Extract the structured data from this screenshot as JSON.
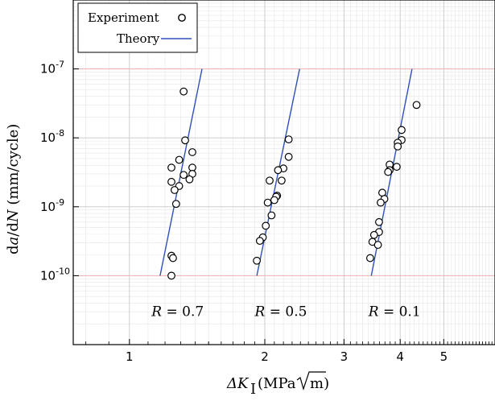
{
  "chart_data": {
    "type": "scatter",
    "x_scale": "log",
    "y_scale": "log",
    "xlim": [
      0.75,
      6.5
    ],
    "ylim": [
      1e-11,
      1e-06
    ],
    "xticks": [
      1,
      2,
      3,
      4,
      5
    ],
    "xtick_labels": [
      "1",
      "2",
      "3",
      "4",
      "5"
    ],
    "yticks": [
      1e-10,
      1e-09,
      1e-08,
      1e-07
    ],
    "ytick_labels": [
      "10^-10",
      "10^-9",
      "10^-8",
      "10^-7"
    ],
    "xlabel": "ΔK_I (MPa√m)",
    "ylabel": "da/dN (mm/cycle)",
    "grid": true,
    "legend": {
      "position": "top-left",
      "entries": [
        {
          "name": "Experiment",
          "marker": "open-circle"
        },
        {
          "name": "Theory",
          "line_color": "#3050b8"
        }
      ]
    },
    "annotations": [
      {
        "text": "R = 0.7",
        "x": 1.12,
        "y": 2.6e-11
      },
      {
        "text": "R = 0.5",
        "x": 1.9,
        "y": 2.6e-11
      },
      {
        "text": "R = 0.1",
        "x": 3.4,
        "y": 2.6e-11
      }
    ],
    "theory_lines": [
      {
        "R": "0.7",
        "x": [
          1.17,
          1.45
        ],
        "y": [
          1e-10,
          1e-07
        ]
      },
      {
        "R": "0.5",
        "x": [
          1.92,
          2.39
        ],
        "y": [
          1e-10,
          1e-07
        ]
      },
      {
        "R": "0.1",
        "x": [
          3.45,
          4.25
        ],
        "y": [
          1e-10,
          1e-07
        ]
      }
    ],
    "series": [
      {
        "R": "0.7",
        "points": [
          {
            "x": 1.32,
            "y": 4.7e-08
          },
          {
            "x": 1.33,
            "y": 9.2e-09
          },
          {
            "x": 1.38,
            "y": 6.2e-09
          },
          {
            "x": 1.29,
            "y": 4.8e-09
          },
          {
            "x": 1.24,
            "y": 3.7e-09
          },
          {
            "x": 1.38,
            "y": 3.7e-09
          },
          {
            "x": 1.38,
            "y": 3e-09
          },
          {
            "x": 1.32,
            "y": 2.9e-09
          },
          {
            "x": 1.36,
            "y": 2.5e-09
          },
          {
            "x": 1.24,
            "y": 2.3e-09
          },
          {
            "x": 1.29,
            "y": 2e-09
          },
          {
            "x": 1.26,
            "y": 1.75e-09
          },
          {
            "x": 1.27,
            "y": 1.1e-09
          },
          {
            "x": 1.24,
            "y": 1.95e-10
          },
          {
            "x": 1.25,
            "y": 1.8e-10
          },
          {
            "x": 1.24,
            "y": 1e-10
          }
        ]
      },
      {
        "R": "0.5",
        "points": [
          {
            "x": 2.26,
            "y": 9.5e-09
          },
          {
            "x": 2.26,
            "y": 5.3e-09
          },
          {
            "x": 2.2,
            "y": 3.6e-09
          },
          {
            "x": 2.14,
            "y": 3.4e-09
          },
          {
            "x": 2.05,
            "y": 2.4e-09
          },
          {
            "x": 2.18,
            "y": 2.4e-09
          },
          {
            "x": 2.13,
            "y": 1.45e-09
          },
          {
            "x": 2.12,
            "y": 1.4e-09
          },
          {
            "x": 2.1,
            "y": 1.25e-09
          },
          {
            "x": 2.03,
            "y": 1.15e-09
          },
          {
            "x": 2.07,
            "y": 7.5e-10
          },
          {
            "x": 2.01,
            "y": 5.3e-10
          },
          {
            "x": 1.98,
            "y": 3.6e-10
          },
          {
            "x": 1.95,
            "y": 3.2e-10
          },
          {
            "x": 1.92,
            "y": 1.65e-10
          }
        ]
      },
      {
        "R": "0.1",
        "points": [
          {
            "x": 4.35,
            "y": 3e-08
          },
          {
            "x": 4.03,
            "y": 1.3e-08
          },
          {
            "x": 4.03,
            "y": 9.3e-09
          },
          {
            "x": 3.95,
            "y": 8.5e-09
          },
          {
            "x": 3.95,
            "y": 7.5e-09
          },
          {
            "x": 3.93,
            "y": 3.8e-09
          },
          {
            "x": 3.79,
            "y": 4.1e-09
          },
          {
            "x": 3.79,
            "y": 3.4e-09
          },
          {
            "x": 3.76,
            "y": 3.2e-09
          },
          {
            "x": 3.65,
            "y": 1.6e-09
          },
          {
            "x": 3.69,
            "y": 1.3e-09
          },
          {
            "x": 3.62,
            "y": 1.15e-09
          },
          {
            "x": 3.59,
            "y": 6e-10
          },
          {
            "x": 3.59,
            "y": 4.3e-10
          },
          {
            "x": 3.5,
            "y": 3.9e-10
          },
          {
            "x": 3.47,
            "y": 3.1e-10
          },
          {
            "x": 3.57,
            "y": 2.8e-10
          },
          {
            "x": 3.43,
            "y": 1.8e-10
          }
        ]
      }
    ],
    "colors": {
      "theory": "#3050b8",
      "marker_edge": "#000000",
      "marker_fill": "#ffffff",
      "major_grid": "#c8c8c8",
      "minor_grid": "#e6e6e6",
      "ref_line": "#f0b4b4"
    }
  }
}
